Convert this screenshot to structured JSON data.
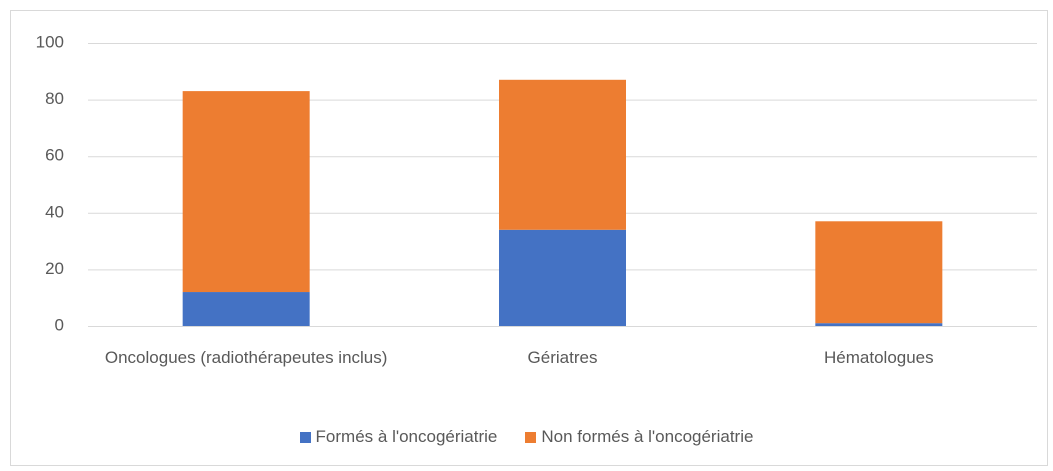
{
  "chart_data": {
    "type": "stacked_bar",
    "categories": [
      "Oncologues (radiothérapeutes inclus)",
      "Gériatres",
      "Hématologues"
    ],
    "series": [
      {
        "name": "Formés à l'oncogériatrie",
        "color": "#4472c4",
        "values": [
          12,
          34,
          1
        ]
      },
      {
        "name": "Non formés à l'oncogériatrie",
        "color": "#ed7d31",
        "values": [
          71,
          53,
          36
        ]
      }
    ],
    "ylim": [
      0,
      100
    ],
    "yticks": [
      0,
      20,
      40,
      60,
      80,
      100
    ],
    "grid": true,
    "legend": "bottom"
  }
}
